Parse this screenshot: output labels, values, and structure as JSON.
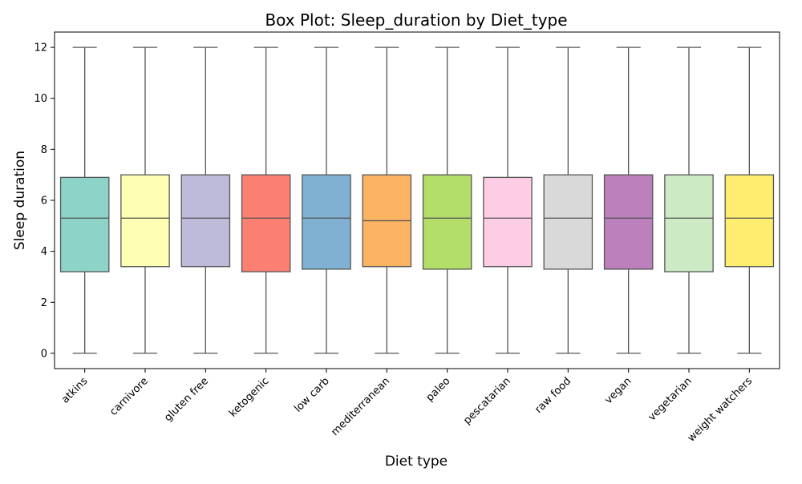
{
  "chart_data": {
    "type": "box",
    "title": "Box Plot: Sleep_duration by Diet_type",
    "xlabel": "Diet type",
    "ylabel": "Sleep duration",
    "ylim": [
      -0.6,
      12.6
    ],
    "yticks": [
      0,
      2,
      4,
      6,
      8,
      10,
      12
    ],
    "grid": false,
    "categories": [
      "atkins",
      "carnivore",
      "gluten free",
      "ketogenic",
      "low carb",
      "mediterranean",
      "paleo",
      "pescatarian",
      "raw food",
      "vegan",
      "vegetarian",
      "weight watchers"
    ],
    "boxes": [
      {
        "category": "atkins",
        "min": 0,
        "q1": 3.2,
        "median": 5.3,
        "q3": 6.9,
        "max": 12,
        "color": "#8dd3c7"
      },
      {
        "category": "carnivore",
        "min": 0,
        "q1": 3.4,
        "median": 5.3,
        "q3": 7.0,
        "max": 12,
        "color": "#ffffb3"
      },
      {
        "category": "gluten free",
        "min": 0,
        "q1": 3.4,
        "median": 5.3,
        "q3": 7.0,
        "max": 12,
        "color": "#bebada"
      },
      {
        "category": "ketogenic",
        "min": 0,
        "q1": 3.2,
        "median": 5.3,
        "q3": 7.0,
        "max": 12,
        "color": "#fb8072"
      },
      {
        "category": "low carb",
        "min": 0,
        "q1": 3.3,
        "median": 5.3,
        "q3": 7.0,
        "max": 12,
        "color": "#80b1d3"
      },
      {
        "category": "mediterranean",
        "min": 0,
        "q1": 3.4,
        "median": 5.2,
        "q3": 7.0,
        "max": 12,
        "color": "#fdb462"
      },
      {
        "category": "paleo",
        "min": 0,
        "q1": 3.3,
        "median": 5.3,
        "q3": 7.0,
        "max": 12,
        "color": "#b3de69"
      },
      {
        "category": "pescatarian",
        "min": 0,
        "q1": 3.4,
        "median": 5.3,
        "q3": 6.9,
        "max": 12,
        "color": "#fccde5"
      },
      {
        "category": "raw food",
        "min": 0,
        "q1": 3.3,
        "median": 5.3,
        "q3": 7.0,
        "max": 12,
        "color": "#d9d9d9"
      },
      {
        "category": "vegan",
        "min": 0,
        "q1": 3.3,
        "median": 5.3,
        "q3": 7.0,
        "max": 12,
        "color": "#bc80bd"
      },
      {
        "category": "vegetarian",
        "min": 0,
        "q1": 3.2,
        "median": 5.3,
        "q3": 7.0,
        "max": 12,
        "color": "#ccebc5"
      },
      {
        "category": "weight watchers",
        "min": 0,
        "q1": 3.4,
        "median": 5.3,
        "q3": 7.0,
        "max": 12,
        "color": "#ffed6f"
      }
    ]
  }
}
